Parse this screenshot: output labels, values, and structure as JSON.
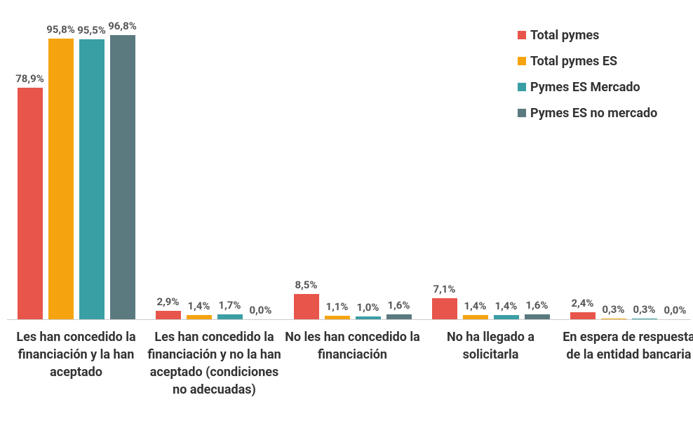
{
  "chart_data": {
    "type": "bar",
    "categories": [
      "Les han concedido la financiación y la han aceptado",
      "Les han concedido la financiación y no la han aceptado (condiciones no adecuadas)",
      "No les han concedido la financiación",
      "No ha llegado a solicitarla",
      "En espera de respuesta de la entidad bancaria"
    ],
    "series": [
      {
        "name": "Total pymes",
        "color": "#e8554a",
        "values": [
          78.9,
          2.9,
          8.5,
          7.1,
          2.4
        ],
        "value_labels": [
          "78,9%",
          "2,9%",
          "8,5%",
          "7,1%",
          "2,4%"
        ]
      },
      {
        "name": "Total pymes ES",
        "color": "#f5a40f",
        "values": [
          95.8,
          1.4,
          1.1,
          1.4,
          0.3
        ],
        "value_labels": [
          "95,8%",
          "1,4%",
          "1,1%",
          "1,4%",
          "0,3%"
        ]
      },
      {
        "name": "Pymes ES Mercado",
        "color": "#3a9ea5",
        "values": [
          95.5,
          1.7,
          1.0,
          1.4,
          0.3
        ],
        "value_labels": [
          "95,5%",
          "1,7%",
          "1,0%",
          "1,4%",
          "0,3%"
        ]
      },
      {
        "name": "Pymes ES no mercado",
        "color": "#5b7a80",
        "values": [
          96.8,
          0.0,
          1.6,
          1.6,
          0.0
        ],
        "value_labels": [
          "96,8%",
          "0,0%",
          "1,6%",
          "1,6%",
          "0,0%"
        ]
      }
    ],
    "ylim": [
      0,
      100
    ],
    "legend": "top-right",
    "grid": false
  }
}
